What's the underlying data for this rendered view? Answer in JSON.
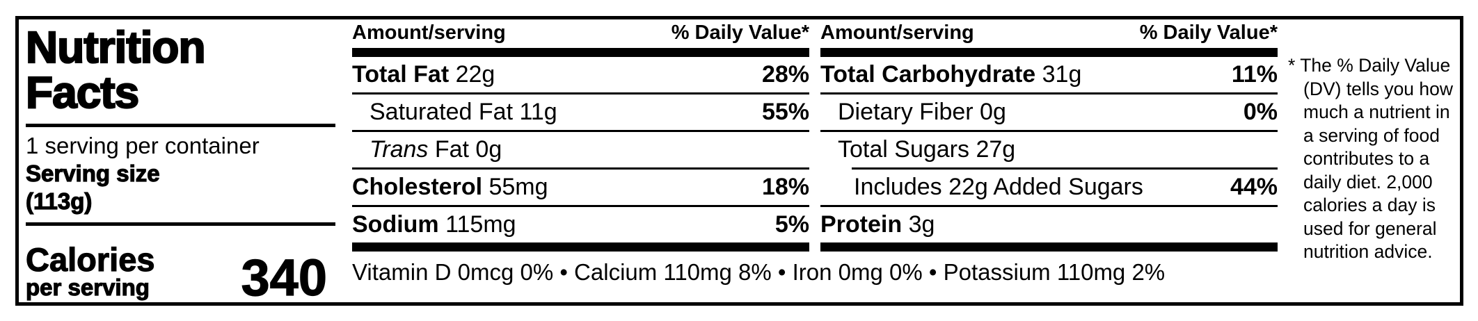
{
  "label": {
    "title": {
      "line1": "Nutrition",
      "line2": "Facts"
    },
    "serving": {
      "per_container": "1 serving per container",
      "size_label": "Serving size",
      "size_value": "(113g)"
    },
    "calories": {
      "label": "Calories",
      "sublabel": "per serving",
      "value": "340"
    },
    "columns_header": {
      "amount": "Amount/serving",
      "daily_value": "% Daily Value*"
    },
    "col_left": {
      "rows": [
        {
          "lead": "Total Fat",
          "rest": " 22g",
          "dv": "28%"
        },
        {
          "lead": "",
          "rest": "Saturated Fat 11g",
          "dv": "55%"
        },
        {
          "lead": "Trans",
          "rest": " Fat 0g",
          "dv": ""
        },
        {
          "lead": "Cholesterol",
          "rest": " 55mg",
          "dv": "18%"
        },
        {
          "lead": "Sodium",
          "rest": " 115mg",
          "dv": "5%"
        }
      ]
    },
    "col_right": {
      "rows": [
        {
          "lead": "Total Carbohydrate",
          "rest": " 31g",
          "dv": "11%"
        },
        {
          "lead": "",
          "rest": "Dietary Fiber 0g",
          "dv": "0%"
        },
        {
          "lead": "",
          "rest": "Total Sugars 27g",
          "dv": ""
        },
        {
          "lead": "",
          "rest": "Includes 22g Added Sugars",
          "dv": "44%"
        },
        {
          "lead": "Protein",
          "rest": " 3g",
          "dv": ""
        }
      ]
    },
    "micronutrients": "Vitamin D 0mcg 0% • Calcium 110mg 8% • Iron 0mg 0% • Potassium 110mg 2%",
    "footnote": {
      "marker": "*",
      "text": "The % Daily Value (DV) tells you how much a nutrient in a serving of food contributes to a daily diet. 2,000 calories a day is used for general nutrition advice."
    },
    "colors": {
      "ink": "#000000",
      "paper": "#ffffff"
    }
  }
}
